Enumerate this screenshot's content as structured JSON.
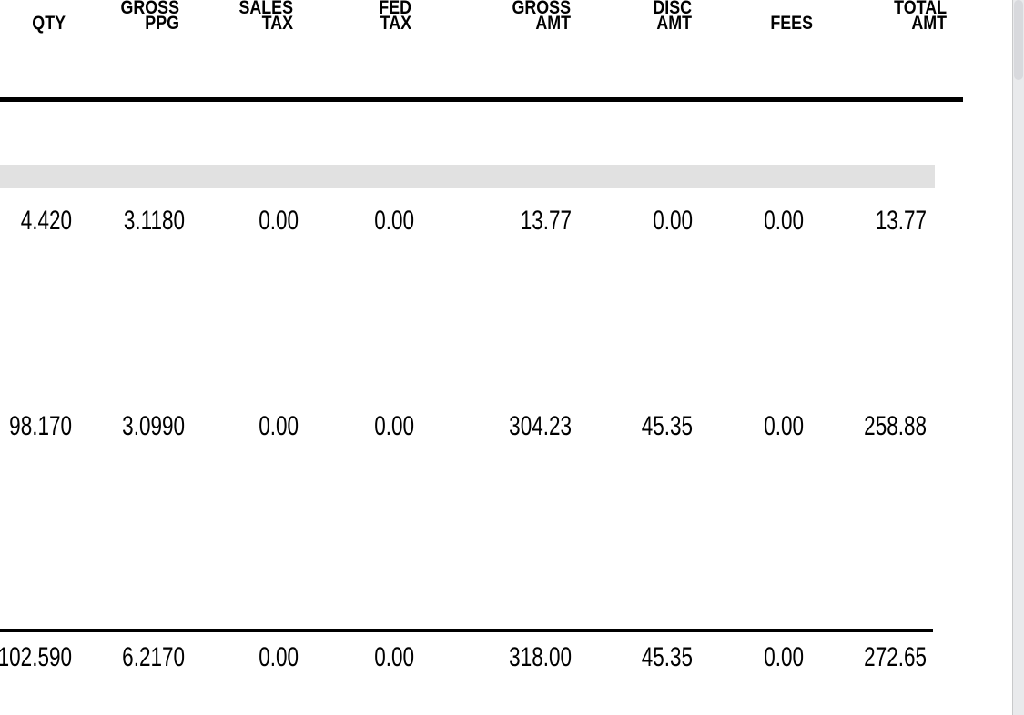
{
  "report": {
    "columns": [
      {
        "l1": "",
        "l2": "QTY"
      },
      {
        "l1": "GROSS",
        "l2": "PPG"
      },
      {
        "l1": "SALES",
        "l2": "TAX"
      },
      {
        "l1": "FED",
        "l2": "TAX"
      },
      {
        "l1": "GROSS",
        "l2": "AMT"
      },
      {
        "l1": "DISC",
        "l2": "AMT"
      },
      {
        "l1": "",
        "l2": "FEES"
      },
      {
        "l1": "TOTAL",
        "l2": "AMT"
      }
    ],
    "rows": [
      [
        "4.420",
        "3.1180",
        "0.00",
        "0.00",
        "13.77",
        "0.00",
        "0.00",
        "13.77"
      ],
      [
        "98.170",
        "3.0990",
        "0.00",
        "0.00",
        "304.23",
        "45.35",
        "0.00",
        "258.88"
      ]
    ],
    "totals": [
      "102.590",
      "6.2170",
      "0.00",
      "0.00",
      "318.00",
      "45.35",
      "0.00",
      "272.65"
    ]
  },
  "colors": {
    "text": "#000000",
    "rule": "#000000",
    "highlight_band": "#e1e1e1",
    "page_background": "#ffffff",
    "scrollbar_track": "#e9eaec",
    "scrollbar_thumb": "#d8d9dd",
    "scrollbar_border": "#c8c9ca"
  }
}
